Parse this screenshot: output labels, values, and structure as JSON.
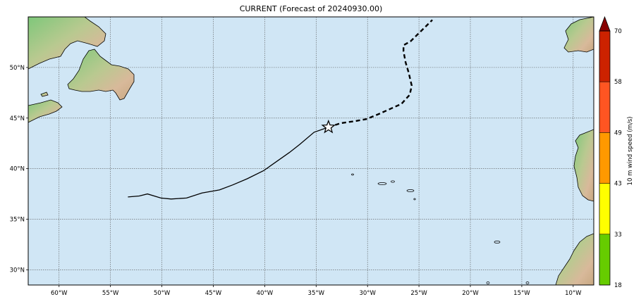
{
  "title": "CURRENT (Forecast of 20240930.00)",
  "map": {
    "lon_range": [
      -63,
      -8
    ],
    "lat_range": [
      28.5,
      55
    ],
    "ocean_color": "#d0e6f5",
    "lon_ticks": [
      {
        "value": -60,
        "label": "60°W"
      },
      {
        "value": -55,
        "label": "55°W"
      },
      {
        "value": -50,
        "label": "50°W"
      },
      {
        "value": -45,
        "label": "45°W"
      },
      {
        "value": -40,
        "label": "40°W"
      },
      {
        "value": -35,
        "label": "35°W"
      },
      {
        "value": -30,
        "label": "30°W"
      },
      {
        "value": -25,
        "label": "25°W"
      },
      {
        "value": -20,
        "label": "20°W"
      },
      {
        "value": -15,
        "label": "15°W"
      },
      {
        "value": -10,
        "label": "10°W"
      }
    ],
    "lat_ticks": [
      {
        "value": 30,
        "label": "30°N"
      },
      {
        "value": 35,
        "label": "35°N"
      },
      {
        "value": 40,
        "label": "40°N"
      },
      {
        "value": 45,
        "label": "45°N"
      },
      {
        "value": 50,
        "label": "50°N"
      }
    ]
  },
  "track": {
    "past": [
      [
        -53.3,
        37.2
      ],
      [
        -52.2,
        37.3
      ],
      [
        -51.4,
        37.5
      ],
      [
        -50.1,
        37.1
      ],
      [
        -49.1,
        37.0
      ],
      [
        -47.6,
        37.1
      ],
      [
        -46.1,
        37.6
      ],
      [
        -44.4,
        37.9
      ],
      [
        -43.1,
        38.4
      ],
      [
        -41.7,
        39.0
      ],
      [
        -40.1,
        39.8
      ],
      [
        -37.6,
        41.6
      ],
      [
        -36.6,
        42.4
      ],
      [
        -35.2,
        43.6
      ],
      [
        -33.8,
        44.1
      ]
    ],
    "forecast": [
      [
        -33.8,
        44.1
      ],
      [
        -32.6,
        44.5
      ],
      [
        -31.2,
        44.7
      ],
      [
        -30.1,
        44.9
      ],
      [
        -28.9,
        45.4
      ],
      [
        -27.8,
        45.9
      ],
      [
        -26.7,
        46.4
      ],
      [
        -25.9,
        47.3
      ],
      [
        -25.7,
        48.2
      ],
      [
        -26.0,
        49.5
      ],
      [
        -26.3,
        50.5
      ],
      [
        -26.5,
        51.6
      ],
      [
        -26.5,
        52.2
      ],
      [
        -25.8,
        52.6
      ],
      [
        -25.1,
        53.3
      ],
      [
        -24.4,
        54.0
      ],
      [
        -23.7,
        54.7
      ]
    ],
    "current_position": [
      -33.8,
      44.1
    ]
  },
  "colorbar": {
    "label": "10 m wind speed (m/s)",
    "levels": [
      {
        "value": 18,
        "label": "18"
      },
      {
        "value": 33,
        "label": "33"
      },
      {
        "value": 43,
        "label": "43"
      },
      {
        "value": 49,
        "label": "49"
      },
      {
        "value": 58,
        "label": "58"
      },
      {
        "value": 70,
        "label": "70"
      }
    ],
    "colors": [
      "#66cc00",
      "#ffff00",
      "#ff9900",
      "#ff5522",
      "#cc2200"
    ],
    "extend_color": "#880000"
  }
}
